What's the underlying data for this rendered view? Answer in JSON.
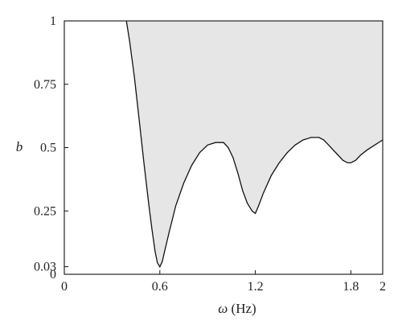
{
  "chart_data": {
    "type": "area",
    "xlabel_symbol": "ω",
    "xlabel_unit": " (Hz)",
    "ylabel": "b",
    "xlim": [
      0,
      2
    ],
    "ylim": [
      0,
      1
    ],
    "grid": false,
    "legend": "none",
    "x_ticks": [
      {
        "value": 0,
        "label": "0"
      },
      {
        "value": 0.6,
        "label": "0.6"
      },
      {
        "value": 1.2,
        "label": "1.2"
      },
      {
        "value": 1.8,
        "label": "1.8"
      },
      {
        "value": 2,
        "label": "2"
      }
    ],
    "y_ticks": [
      {
        "value": 0,
        "label": "0"
      },
      {
        "value": 0.03,
        "label": "0.03"
      },
      {
        "value": 0.25,
        "label": "0.25"
      },
      {
        "value": 0.5,
        "label": "0.5"
      },
      {
        "value": 0.75,
        "label": "0.75"
      },
      {
        "value": 1,
        "label": "1"
      }
    ],
    "fill_color": "#e6e6e6",
    "line_color": "#111111",
    "fill_region": "above curve up to b = 1",
    "series": [
      {
        "x": [
          0.39,
          0.41,
          0.44,
          0.47,
          0.5,
          0.53,
          0.55,
          0.57,
          0.585,
          0.6,
          0.615,
          0.63,
          0.66,
          0.7,
          0.75,
          0.8,
          0.85,
          0.9,
          0.95,
          1.0,
          1.03,
          1.06,
          1.09,
          1.12,
          1.15,
          1.18,
          1.2,
          1.22,
          1.25,
          1.3,
          1.35,
          1.4,
          1.45,
          1.5,
          1.55,
          1.6,
          1.63,
          1.66,
          1.69,
          1.72,
          1.75,
          1.78,
          1.8,
          1.83,
          1.86,
          1.9,
          1.95,
          2.0
        ],
        "y": [
          1.0,
          0.92,
          0.78,
          0.61,
          0.44,
          0.28,
          0.18,
          0.09,
          0.045,
          0.03,
          0.05,
          0.09,
          0.17,
          0.27,
          0.36,
          0.43,
          0.48,
          0.51,
          0.52,
          0.52,
          0.5,
          0.46,
          0.4,
          0.33,
          0.28,
          0.25,
          0.24,
          0.27,
          0.32,
          0.39,
          0.44,
          0.48,
          0.51,
          0.53,
          0.54,
          0.54,
          0.53,
          0.51,
          0.49,
          0.47,
          0.45,
          0.44,
          0.44,
          0.45,
          0.47,
          0.49,
          0.51,
          0.53
        ]
      }
    ]
  }
}
